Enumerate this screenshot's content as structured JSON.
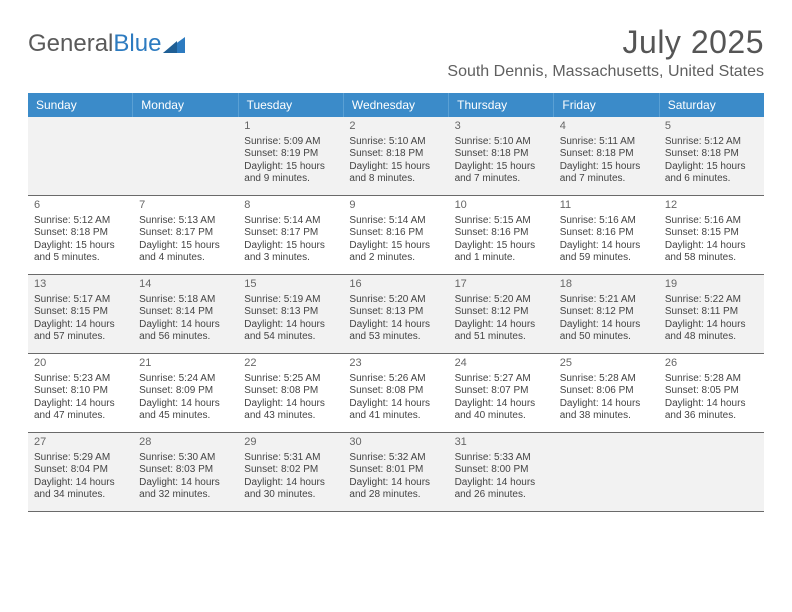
{
  "logo": {
    "text1": "General",
    "text2": "Blue"
  },
  "title": "July 2025",
  "location": "South Dennis, Massachusetts, United States",
  "colors": {
    "header_bg": "#3b8bc9",
    "header_text": "#ffffff",
    "alt_row_bg": "#f2f2f2",
    "border": "#6a6a6a",
    "logo_gray": "#5a5a5a",
    "logo_blue": "#2d7bc0"
  },
  "daysOfWeek": [
    "Sunday",
    "Monday",
    "Tuesday",
    "Wednesday",
    "Thursday",
    "Friday",
    "Saturday"
  ],
  "weeks": [
    [
      {
        "n": "",
        "lines": []
      },
      {
        "n": "",
        "lines": []
      },
      {
        "n": "1",
        "lines": [
          "Sunrise: 5:09 AM",
          "Sunset: 8:19 PM",
          "Daylight: 15 hours",
          "and 9 minutes."
        ]
      },
      {
        "n": "2",
        "lines": [
          "Sunrise: 5:10 AM",
          "Sunset: 8:18 PM",
          "Daylight: 15 hours",
          "and 8 minutes."
        ]
      },
      {
        "n": "3",
        "lines": [
          "Sunrise: 5:10 AM",
          "Sunset: 8:18 PM",
          "Daylight: 15 hours",
          "and 7 minutes."
        ]
      },
      {
        "n": "4",
        "lines": [
          "Sunrise: 5:11 AM",
          "Sunset: 8:18 PM",
          "Daylight: 15 hours",
          "and 7 minutes."
        ]
      },
      {
        "n": "5",
        "lines": [
          "Sunrise: 5:12 AM",
          "Sunset: 8:18 PM",
          "Daylight: 15 hours",
          "and 6 minutes."
        ]
      }
    ],
    [
      {
        "n": "6",
        "lines": [
          "Sunrise: 5:12 AM",
          "Sunset: 8:18 PM",
          "Daylight: 15 hours",
          "and 5 minutes."
        ]
      },
      {
        "n": "7",
        "lines": [
          "Sunrise: 5:13 AM",
          "Sunset: 8:17 PM",
          "Daylight: 15 hours",
          "and 4 minutes."
        ]
      },
      {
        "n": "8",
        "lines": [
          "Sunrise: 5:14 AM",
          "Sunset: 8:17 PM",
          "Daylight: 15 hours",
          "and 3 minutes."
        ]
      },
      {
        "n": "9",
        "lines": [
          "Sunrise: 5:14 AM",
          "Sunset: 8:16 PM",
          "Daylight: 15 hours",
          "and 2 minutes."
        ]
      },
      {
        "n": "10",
        "lines": [
          "Sunrise: 5:15 AM",
          "Sunset: 8:16 PM",
          "Daylight: 15 hours",
          "and 1 minute."
        ]
      },
      {
        "n": "11",
        "lines": [
          "Sunrise: 5:16 AM",
          "Sunset: 8:16 PM",
          "Daylight: 14 hours",
          "and 59 minutes."
        ]
      },
      {
        "n": "12",
        "lines": [
          "Sunrise: 5:16 AM",
          "Sunset: 8:15 PM",
          "Daylight: 14 hours",
          "and 58 minutes."
        ]
      }
    ],
    [
      {
        "n": "13",
        "lines": [
          "Sunrise: 5:17 AM",
          "Sunset: 8:15 PM",
          "Daylight: 14 hours",
          "and 57 minutes."
        ]
      },
      {
        "n": "14",
        "lines": [
          "Sunrise: 5:18 AM",
          "Sunset: 8:14 PM",
          "Daylight: 14 hours",
          "and 56 minutes."
        ]
      },
      {
        "n": "15",
        "lines": [
          "Sunrise: 5:19 AM",
          "Sunset: 8:13 PM",
          "Daylight: 14 hours",
          "and 54 minutes."
        ]
      },
      {
        "n": "16",
        "lines": [
          "Sunrise: 5:20 AM",
          "Sunset: 8:13 PM",
          "Daylight: 14 hours",
          "and 53 minutes."
        ]
      },
      {
        "n": "17",
        "lines": [
          "Sunrise: 5:20 AM",
          "Sunset: 8:12 PM",
          "Daylight: 14 hours",
          "and 51 minutes."
        ]
      },
      {
        "n": "18",
        "lines": [
          "Sunrise: 5:21 AM",
          "Sunset: 8:12 PM",
          "Daylight: 14 hours",
          "and 50 minutes."
        ]
      },
      {
        "n": "19",
        "lines": [
          "Sunrise: 5:22 AM",
          "Sunset: 8:11 PM",
          "Daylight: 14 hours",
          "and 48 minutes."
        ]
      }
    ],
    [
      {
        "n": "20",
        "lines": [
          "Sunrise: 5:23 AM",
          "Sunset: 8:10 PM",
          "Daylight: 14 hours",
          "and 47 minutes."
        ]
      },
      {
        "n": "21",
        "lines": [
          "Sunrise: 5:24 AM",
          "Sunset: 8:09 PM",
          "Daylight: 14 hours",
          "and 45 minutes."
        ]
      },
      {
        "n": "22",
        "lines": [
          "Sunrise: 5:25 AM",
          "Sunset: 8:08 PM",
          "Daylight: 14 hours",
          "and 43 minutes."
        ]
      },
      {
        "n": "23",
        "lines": [
          "Sunrise: 5:26 AM",
          "Sunset: 8:08 PM",
          "Daylight: 14 hours",
          "and 41 minutes."
        ]
      },
      {
        "n": "24",
        "lines": [
          "Sunrise: 5:27 AM",
          "Sunset: 8:07 PM",
          "Daylight: 14 hours",
          "and 40 minutes."
        ]
      },
      {
        "n": "25",
        "lines": [
          "Sunrise: 5:28 AM",
          "Sunset: 8:06 PM",
          "Daylight: 14 hours",
          "and 38 minutes."
        ]
      },
      {
        "n": "26",
        "lines": [
          "Sunrise: 5:28 AM",
          "Sunset: 8:05 PM",
          "Daylight: 14 hours",
          "and 36 minutes."
        ]
      }
    ],
    [
      {
        "n": "27",
        "lines": [
          "Sunrise: 5:29 AM",
          "Sunset: 8:04 PM",
          "Daylight: 14 hours",
          "and 34 minutes."
        ]
      },
      {
        "n": "28",
        "lines": [
          "Sunrise: 5:30 AM",
          "Sunset: 8:03 PM",
          "Daylight: 14 hours",
          "and 32 minutes."
        ]
      },
      {
        "n": "29",
        "lines": [
          "Sunrise: 5:31 AM",
          "Sunset: 8:02 PM",
          "Daylight: 14 hours",
          "and 30 minutes."
        ]
      },
      {
        "n": "30",
        "lines": [
          "Sunrise: 5:32 AM",
          "Sunset: 8:01 PM",
          "Daylight: 14 hours",
          "and 28 minutes."
        ]
      },
      {
        "n": "31",
        "lines": [
          "Sunrise: 5:33 AM",
          "Sunset: 8:00 PM",
          "Daylight: 14 hours",
          "and 26 minutes."
        ]
      },
      {
        "n": "",
        "lines": []
      },
      {
        "n": "",
        "lines": []
      }
    ]
  ]
}
